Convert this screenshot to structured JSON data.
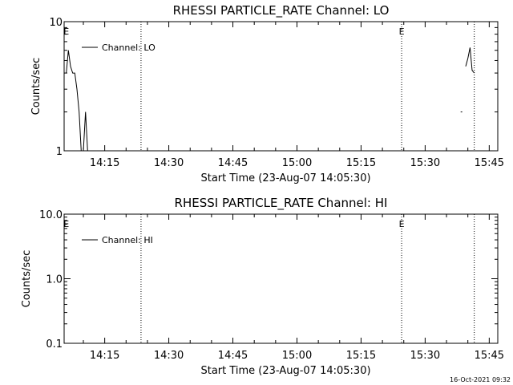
{
  "stamp": "16-Oct-2021 09:32",
  "chart_data": [
    {
      "type": "line",
      "title": "RHESSI PARTICLE_RATE Channel: LO",
      "xlabel": "Start Time (23-Aug-07 14:05:30)",
      "ylabel": "Counts/sec",
      "yscale": "log",
      "xlim": [
        "14:05:30",
        "15:47:00"
      ],
      "ylim": [
        1,
        10
      ],
      "x_ticks": [
        "14:15",
        "14:30",
        "14:45",
        "15:00",
        "15:15",
        "15:30",
        "15:45"
      ],
      "y_ticks": [
        "1",
        "10"
      ],
      "grid": false,
      "legend_position": "top-left",
      "series": [
        {
          "name": "Channel: LO",
          "x": [
            "14:06:00",
            "14:06:30",
            "14:07:00",
            "14:07:30",
            "14:08:00",
            "14:08:30",
            "14:09:00",
            "14:09:30",
            "14:10:00",
            "14:10:30",
            "14:11:00"
          ],
          "y": [
            4.0,
            6.0,
            4.5,
            4.0,
            4.0,
            3.0,
            2.0,
            1.0,
            1.0,
            2.0,
            1.0
          ]
        },
        {
          "name": "Channel: LO",
          "x": [
            "15:39:30",
            "15:40:00",
            "15:40:30",
            "15:41:00",
            "15:41:30"
          ],
          "y": [
            4.5,
            5.2,
            6.3,
            4.2,
            4.0
          ]
        }
      ],
      "points": [
        {
          "x": "15:38:30",
          "y": 2.0
        }
      ],
      "event_lines": [
        {
          "x": "14:06:00",
          "label": "E",
          "style": "none"
        },
        {
          "x": "14:23:30",
          "label": "",
          "style": "dotted"
        },
        {
          "x": "15:24:30",
          "label": "E",
          "style": "dotted"
        },
        {
          "x": "15:41:30",
          "label": "",
          "style": "dotted"
        }
      ]
    },
    {
      "type": "line",
      "title": "RHESSI PARTICLE_RATE Channel: HI",
      "xlabel": "Start Time (23-Aug-07 14:05:30)",
      "ylabel": "Counts/sec",
      "yscale": "log",
      "xlim": [
        "14:05:30",
        "15:47:00"
      ],
      "ylim": [
        0.1,
        10
      ],
      "x_ticks": [
        "14:15",
        "14:30",
        "14:45",
        "15:00",
        "15:15",
        "15:30",
        "15:45"
      ],
      "y_ticks": [
        "0.1",
        "1.0",
        "10.0"
      ],
      "grid": false,
      "legend_position": "top-left",
      "series": [
        {
          "name": "Channel: HI",
          "x": [],
          "y": []
        }
      ],
      "event_lines": [
        {
          "x": "14:06:00",
          "label": "E",
          "style": "none"
        },
        {
          "x": "14:23:30",
          "label": "",
          "style": "dotted"
        },
        {
          "x": "15:24:30",
          "label": "E",
          "style": "dotted"
        },
        {
          "x": "15:41:30",
          "label": "",
          "style": "dotted"
        }
      ]
    }
  ]
}
